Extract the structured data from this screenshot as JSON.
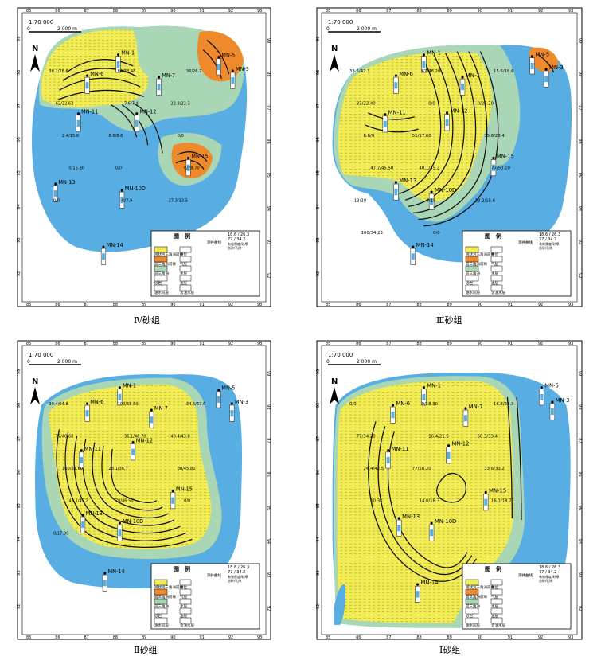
{
  "colors": {
    "sand": "#f2ec55",
    "sand_dot": "#b9b233",
    "green": "#a9d6b5",
    "orange": "#ef8a2c",
    "water": "#58aee3",
    "contour": "#111111"
  },
  "legend": {
    "title": "图　例",
    "curve_label": "测井曲线",
    "values_top": "18.6 / 26.3",
    "values_bottom": "77 / 34.2",
    "value_note": "有效厚度/砂厚",
    "value_note2": "含砂/孔隙",
    "items": [
      {
        "label": "辫状河三角洲前缘",
        "symbol": "井位"
      },
      {
        "label": "前三角洲前缘",
        "symbol": "气层"
      },
      {
        "label": "前三角洲",
        "symbol": "水层"
      },
      {
        "label": "砂岩",
        "symbol": "油层"
      },
      {
        "label": "油水同层",
        "symbol": "含油水层"
      }
    ]
  },
  "panels": [
    {
      "id": "IV",
      "caption": "Ⅳ砂组",
      "scale_text": "1:70 000",
      "scale_zero": "0",
      "scale_dist": "2 000 m",
      "north": "N",
      "x_ticks": [
        "85",
        "86",
        "87",
        "88",
        "89",
        "90",
        "91",
        "92",
        "93"
      ],
      "y_ticks": [
        "99",
        "98",
        "97",
        "96",
        "95",
        "94",
        "93",
        "92"
      ],
      "wells": [
        "MN-1",
        "MN-6",
        "MN-7",
        "MN-5",
        "MN-3",
        "MN-11",
        "MN-12",
        "MN-15",
        "MN-13",
        "MN-10D",
        "MN-14"
      ],
      "annotations": [
        "38.1/28.6",
        "84/38.48",
        "36/26.7",
        "62/22.62",
        "7.6/7.4",
        "22.8/22.3",
        "2.4/15.6",
        "8.6/8.6",
        "0/0",
        "0/16.30",
        "0/0",
        "0/28.70",
        "0/0",
        "0/7.9",
        "27.3/13.5"
      ]
    },
    {
      "id": "III",
      "caption": "Ⅲ砂组",
      "scale_text": "1:70 000",
      "scale_zero": "0",
      "scale_dist": "2 000 m",
      "north": "N",
      "x_ticks": [
        "85",
        "86",
        "87",
        "88",
        "89",
        "90",
        "91",
        "92",
        "93"
      ],
      "y_ticks": [
        "99",
        "98",
        "97",
        "96",
        "95",
        "94",
        "93",
        "92"
      ],
      "wells": [
        "MN-1",
        "MN-6",
        "MN-7",
        "MN-5",
        "MN-3",
        "MN-11",
        "MN-12",
        "MN-15",
        "MN-13",
        "MN-10D",
        "MN-14"
      ],
      "annotations": [
        "33.5/42.3",
        "67/48.20",
        "15.6/18.6",
        "83/22.40",
        "0/0",
        "0/26.20",
        "6.6/9",
        "51/17.60",
        "35.8/28.4",
        "47.7/45.50",
        "40.1/45.2",
        "77/50.10",
        "13/18",
        "0/19",
        "13.2/15.6",
        "100/34.23",
        "0/0",
        "0/12.60"
      ]
    },
    {
      "id": "II",
      "caption": "Ⅱ砂组",
      "scale_text": "1:70 000",
      "scale_zero": "0",
      "scale_dist": "2 000 m",
      "north": "N",
      "x_ticks": [
        "85",
        "86",
        "87",
        "88",
        "89",
        "90",
        "91",
        "92",
        "93"
      ],
      "y_ticks": [
        "99",
        "98",
        "97",
        "96",
        "95",
        "94",
        "93",
        "92"
      ],
      "wells": [
        "MN-1",
        "MN-6",
        "MN-7",
        "MN-5",
        "MN-3",
        "MN-11",
        "MN-12",
        "MN-15",
        "MN-13",
        "MN-10D",
        "MN-14"
      ],
      "annotations": [
        "39.4/64.8",
        "100/68.50",
        "34.6/67.6",
        "77/40.60",
        "36.1/48.70",
        "40.4/43.8",
        "100/61.60",
        "28.1/36.7",
        "80/45.80",
        "45.1/45.2",
        "70/46.50",
        "0/0",
        "0/17.90"
      ]
    },
    {
      "id": "I",
      "caption": "Ⅰ砂组",
      "scale_text": "1:70 000",
      "scale_zero": "0",
      "scale_dist": "2 000 m",
      "north": "N",
      "x_ticks": [
        "85",
        "86",
        "87",
        "88",
        "89",
        "90",
        "91",
        "92",
        "93"
      ],
      "y_ticks": [
        "99",
        "98",
        "97",
        "96",
        "95",
        "94",
        "93",
        "92"
      ],
      "wells": [
        "MN-1",
        "MN-6",
        "MN-7",
        "MN-5",
        "MN-3",
        "MN-11",
        "MN-12",
        "MN-15",
        "MN-13",
        "MN-10D",
        "MN-14"
      ],
      "annotations": [
        "0/0",
        "0/18.30",
        "16.8/28.3",
        "77/34.20",
        "16.4/21.5",
        "60.3/33.4",
        "24.4/42.5",
        "77/50.20",
        "33.6/33.2",
        "10.30",
        "14.0/18.3",
        "16.1/18.7"
      ]
    }
  ]
}
